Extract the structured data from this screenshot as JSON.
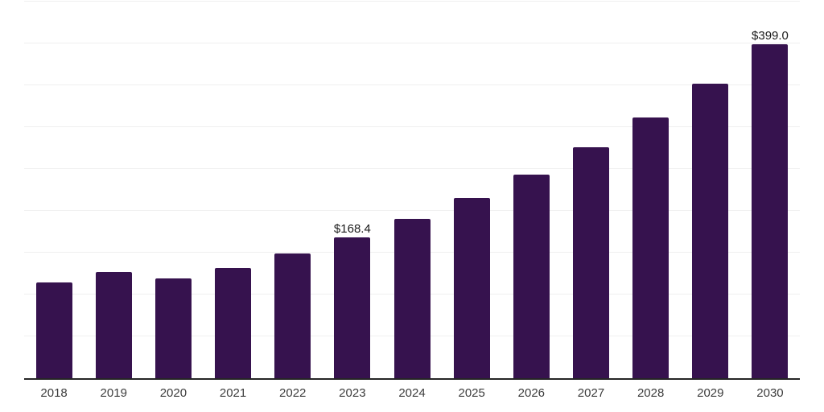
{
  "chart_data": {
    "type": "bar",
    "title": "",
    "xlabel": "",
    "ylabel": "",
    "categories": [
      "2018",
      "2019",
      "2020",
      "2021",
      "2022",
      "2023",
      "2024",
      "2025",
      "2026",
      "2027",
      "2028",
      "2029",
      "2030"
    ],
    "values": [
      114.7,
      126.6,
      119.2,
      132.0,
      148.9,
      168.4,
      190.5,
      215.4,
      243.6,
      275.5,
      311.6,
      352.4,
      399.0
    ],
    "bar_labels": [
      "",
      "",
      "",
      "",
      "",
      "$168.4",
      "",
      "",
      "",
      "",
      "",
      "",
      "$399.0"
    ],
    "currency_prefix": "$",
    "ylim": [
      0,
      450
    ],
    "gridline_step": 50,
    "grid": true,
    "legend_position": "none",
    "y_axis_labels_visible": false,
    "colors": {
      "bar": "#36124E",
      "gridline": "#F0F0F0",
      "axis_line": "#262626",
      "tick_label": "#3C3C3C",
      "value_label": "#1A1A1A",
      "background": "#FFFFFF"
    }
  }
}
